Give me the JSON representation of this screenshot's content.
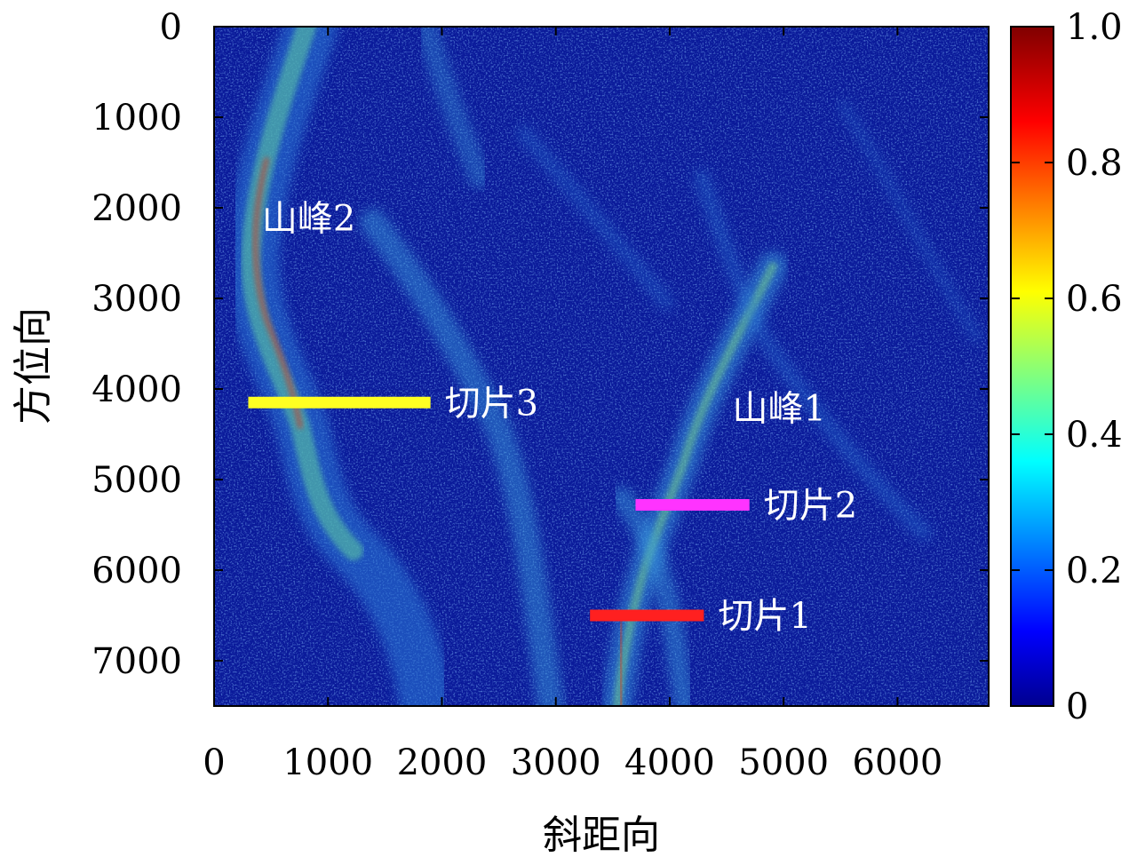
{
  "chart_data": {
    "type": "heatmap",
    "title": "",
    "xlabel": "斜距向",
    "ylabel": "方位向",
    "xlim": [
      0,
      6800
    ],
    "ylim": [
      7500,
      0
    ],
    "x_ticks": [
      {
        "value": 0,
        "label": "0"
      },
      {
        "value": 1000,
        "label": "1000"
      },
      {
        "value": 2000,
        "label": "2000"
      },
      {
        "value": 3000,
        "label": "3000"
      },
      {
        "value": 4000,
        "label": "4000"
      },
      {
        "value": 5000,
        "label": "5000"
      },
      {
        "value": 6000,
        "label": "6000"
      }
    ],
    "y_ticks": [
      {
        "value": 0,
        "label": "0"
      },
      {
        "value": 1000,
        "label": "1000"
      },
      {
        "value": 2000,
        "label": "2000"
      },
      {
        "value": 3000,
        "label": "3000"
      },
      {
        "value": 4000,
        "label": "4000"
      },
      {
        "value": 5000,
        "label": "5000"
      },
      {
        "value": 6000,
        "label": "6000"
      },
      {
        "value": 7000,
        "label": "7000"
      }
    ],
    "colorbar": {
      "colormap": "jet",
      "range": [
        0,
        1
      ],
      "ticks": [
        {
          "value": 0,
          "label": "0"
        },
        {
          "value": 0.2,
          "label": "0.2"
        },
        {
          "value": 0.4,
          "label": "0.4"
        },
        {
          "value": 0.6,
          "label": "0.6"
        },
        {
          "value": 0.8,
          "label": "0.8"
        },
        {
          "value": 1.0,
          "label": "1.0"
        }
      ]
    },
    "slices": [
      {
        "label": "切片1",
        "x_start": 3300,
        "x_end": 4300,
        "y": 6500,
        "color": "#ff2020"
      },
      {
        "label": "切片2",
        "x_start": 3700,
        "x_end": 4700,
        "y": 5280,
        "color": "#ff33ff"
      },
      {
        "label": "切片3",
        "x_start": 300,
        "x_end": 1900,
        "y": 4150,
        "color": "#ffff22"
      }
    ],
    "annotations": [
      {
        "text": "山峰1",
        "x": 4550,
        "y": 4350
      },
      {
        "text": "山峰2",
        "x": 420,
        "y": 2250
      }
    ]
  }
}
